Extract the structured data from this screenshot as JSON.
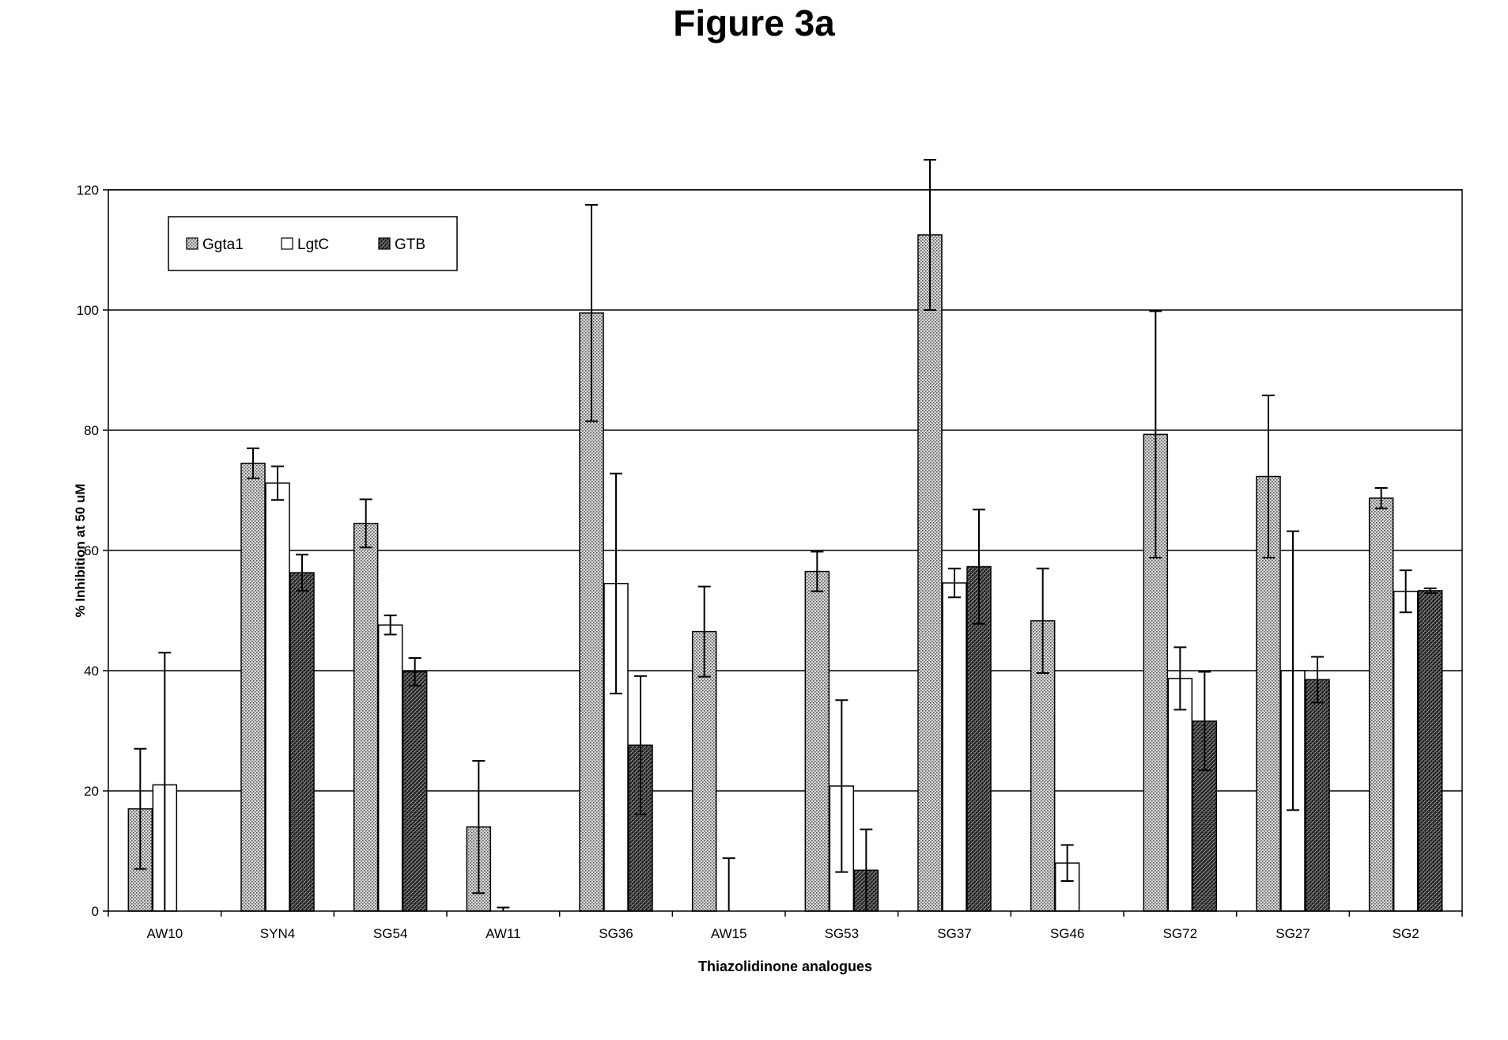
{
  "figure_title": "Figure 3a",
  "chart_data": {
    "type": "bar",
    "title": "Figure 3a",
    "xlabel": "Thiazolidinone analogues",
    "ylabel": "% Inhibition at 50 uM",
    "ylim": [
      0,
      120
    ],
    "yticks": [
      0,
      20,
      40,
      60,
      80,
      100,
      120
    ],
    "grid": true,
    "legend_position": "top-left",
    "categories": [
      "AW10",
      "SYN4",
      "SG54",
      "AW11",
      "SG36",
      "AW15",
      "SG53",
      "SG37",
      "SG46",
      "SG72",
      "SG27",
      "SG2"
    ],
    "series": [
      {
        "name": "Ggta1",
        "pattern": "dots",
        "values": [
          17,
          74.5,
          64.5,
          14,
          99.5,
          46.5,
          56.5,
          112.5,
          48.3,
          79.3,
          72.3,
          68.7
        ],
        "errors": [
          10,
          2.5,
          4,
          11,
          18,
          7.5,
          3.3,
          12.5,
          8.7,
          20.5,
          13.5,
          1.7
        ]
      },
      {
        "name": "LgtC",
        "pattern": "white",
        "values": [
          21,
          71.2,
          47.6,
          0,
          54.5,
          0,
          20.8,
          54.6,
          8,
          38.7,
          40,
          53.2
        ],
        "errors": [
          22,
          2.8,
          1.6,
          0.6,
          18.3,
          8.8,
          14.3,
          2.4,
          3,
          5.2,
          23.2,
          3.5
        ]
      },
      {
        "name": "GTB",
        "pattern": "crosshatch",
        "values": [
          0,
          56.3,
          39.8,
          0,
          27.6,
          0,
          6.8,
          57.3,
          0,
          31.6,
          38.5,
          53.3
        ],
        "errors": [
          0,
          3,
          2.3,
          0,
          11.5,
          0,
          6.8,
          9.5,
          0,
          8.2,
          3.8,
          0.4
        ]
      }
    ]
  }
}
